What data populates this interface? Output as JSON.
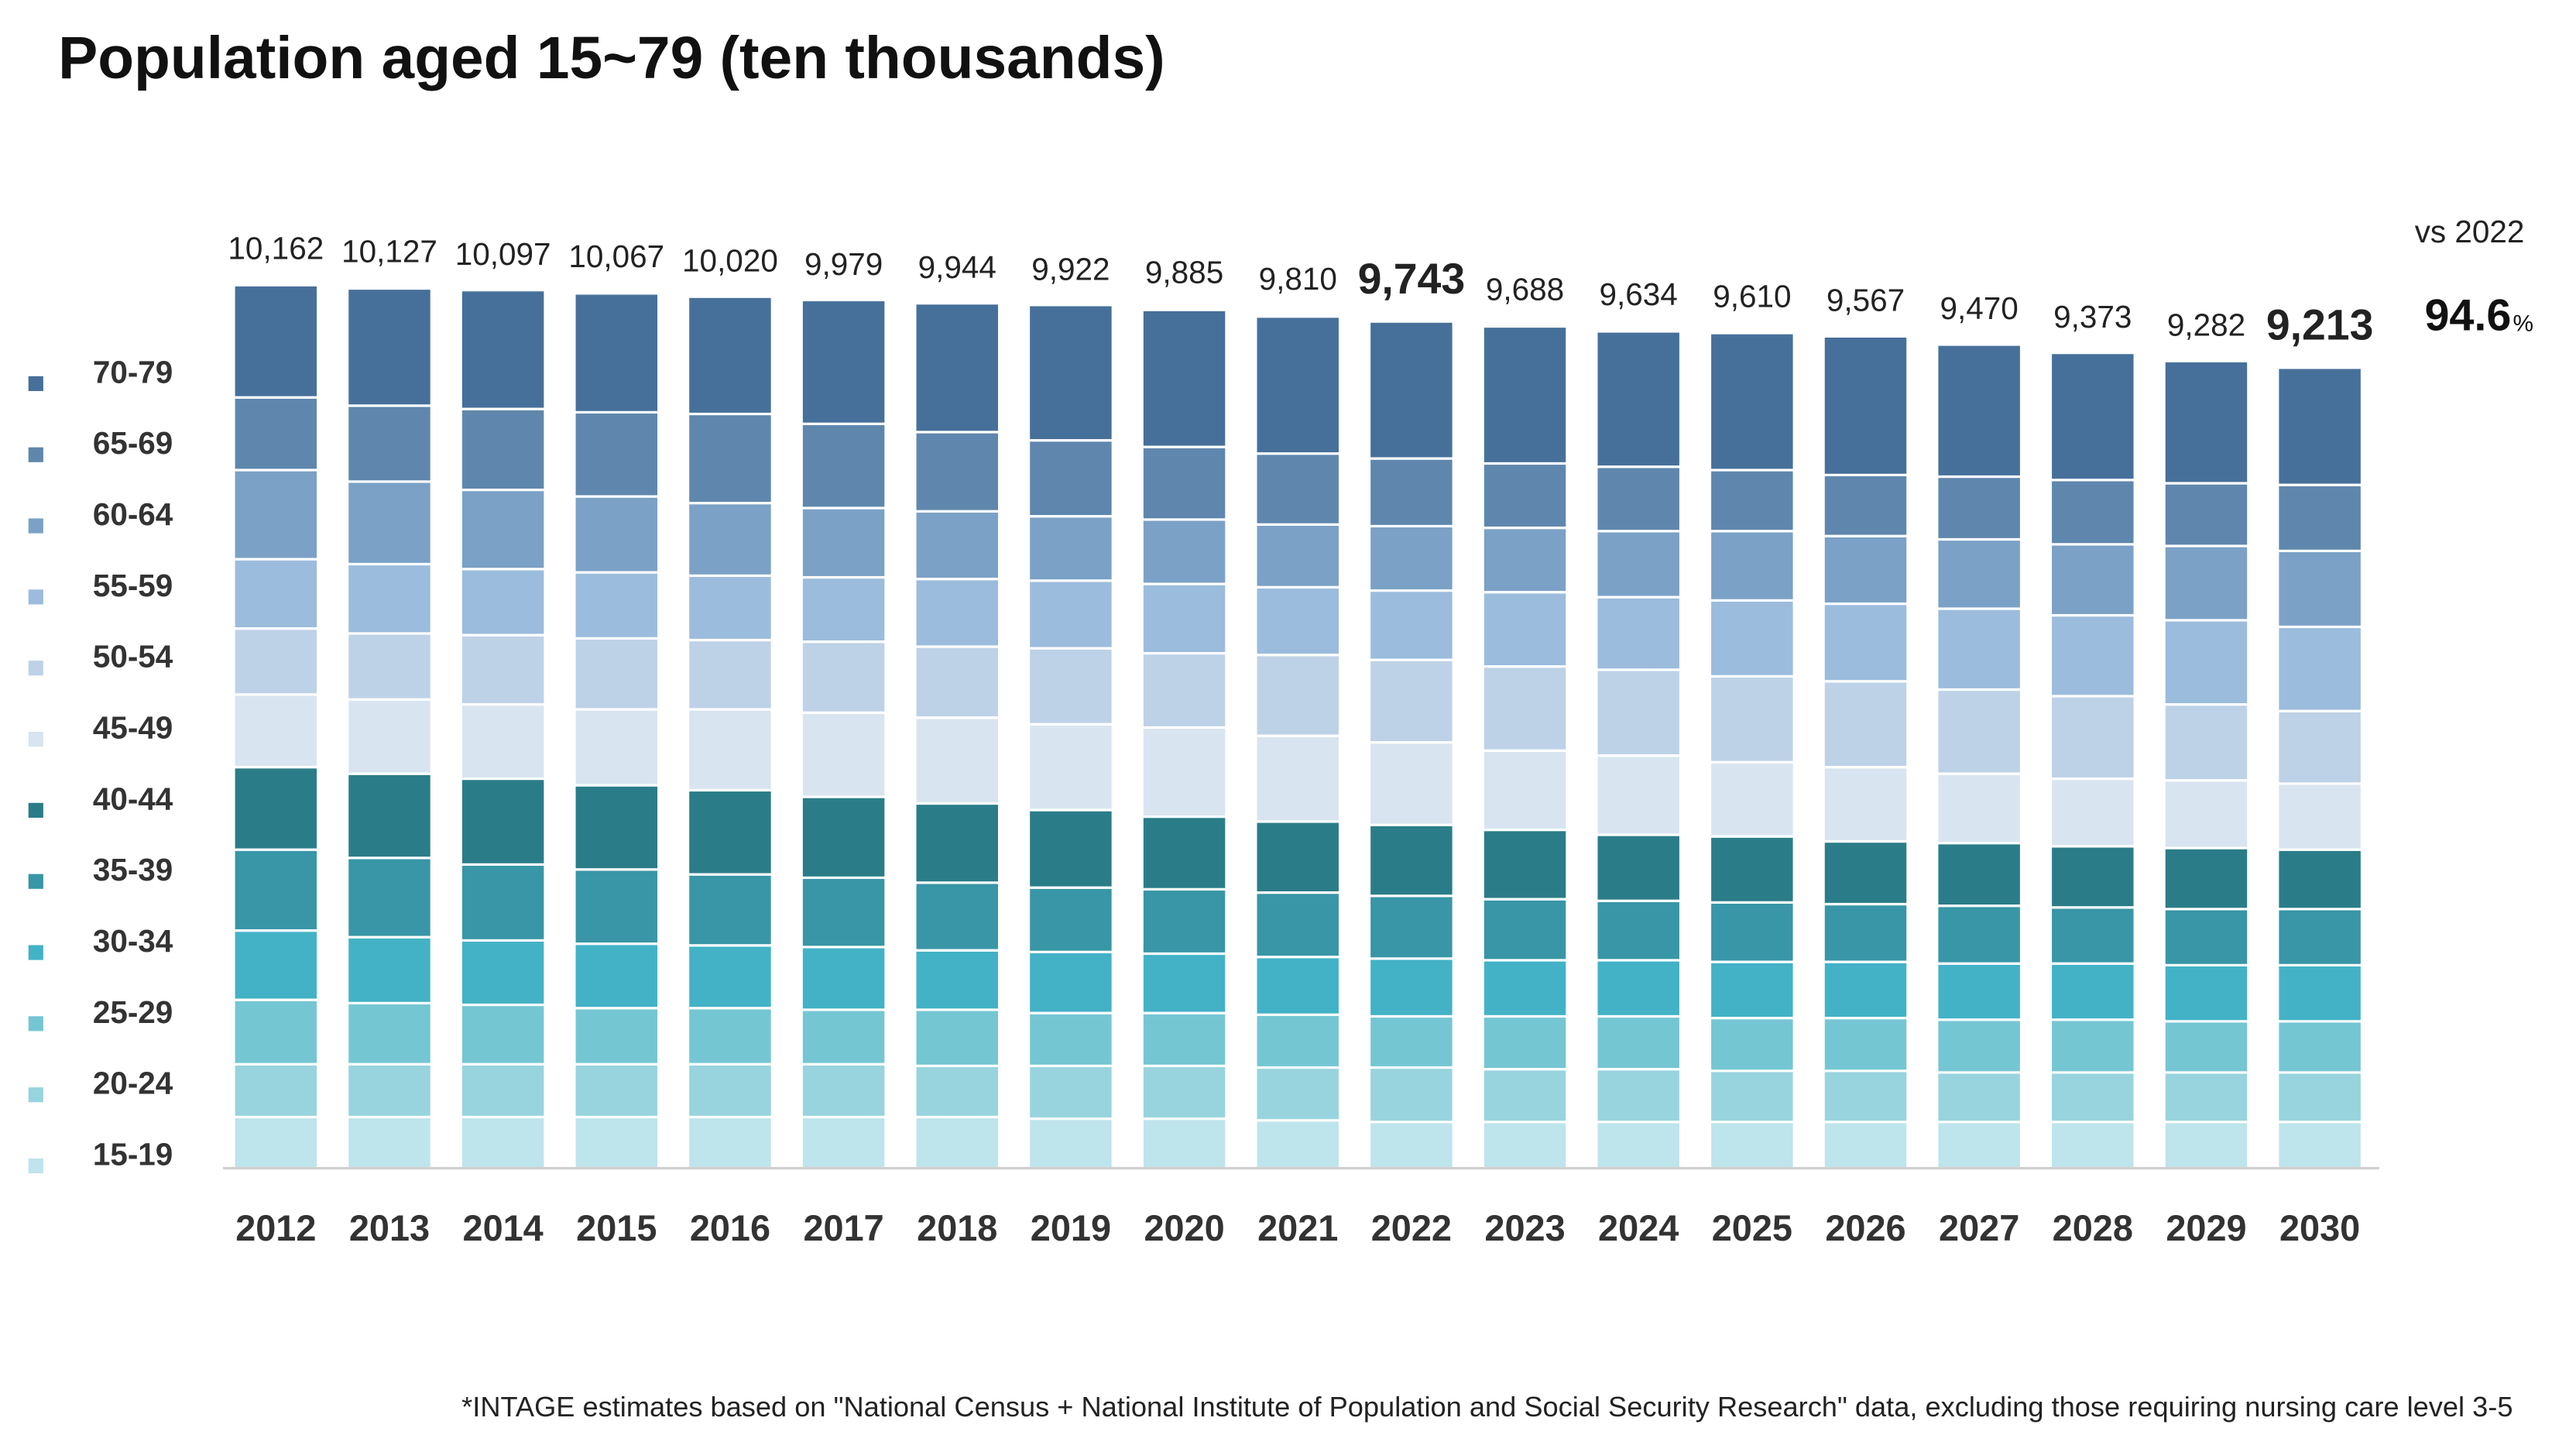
{
  "chart_data": {
    "type": "stacked_bar",
    "title": "Population aged 15~79 (ten thousands)",
    "footnote": "*INTAGE estimates based on \"National Census + National Institute of Population and Social Security Research\" data, excluding those requiring nursing care level 3-5",
    "categories": [
      "2012",
      "2013",
      "2014",
      "2015",
      "2016",
      "2017",
      "2018",
      "2019",
      "2020",
      "2021",
      "2022",
      "2023",
      "2024",
      "2025",
      "2026",
      "2027",
      "2028",
      "2029",
      "2030"
    ],
    "totals": [
      10162,
      10127,
      10097,
      10067,
      10020,
      9979,
      9944,
      9922,
      9885,
      9810,
      9743,
      9688,
      9634,
      9610,
      9567,
      9470,
      9373,
      9282,
      9213
    ],
    "total_labels": [
      "10,162",
      "10,127",
      "10,097",
      "10,067",
      "10,020",
      "9,979",
      "9,944",
      "9,922",
      "9,885",
      "9,810",
      "9,743",
      "9,688",
      "9,634",
      "9,610",
      "9,567",
      "9,470",
      "9,373",
      "9,282",
      "9,213"
    ],
    "bold_labels": [
      10,
      18
    ],
    "comparison": {
      "label": "vs 2022",
      "value": 94.6,
      "unit": "%"
    },
    "ylim": [
      0,
      10162
    ],
    "series": [
      {
        "name": "15-19",
        "color": "#bee4ec",
        "values": [
          589,
          589,
          589,
          589,
          589,
          589,
          589,
          570,
          570,
          551,
          532,
          532,
          532,
          532,
          532,
          532,
          532,
          532,
          532
        ]
      },
      {
        "name": "20-24",
        "color": "#98d4de",
        "values": [
          608,
          608,
          608,
          608,
          608,
          608,
          589,
          608,
          608,
          608,
          627,
          608,
          608,
          589,
          589,
          570,
          570,
          570,
          570
        ]
      },
      {
        "name": "25-29",
        "color": "#75c6d3",
        "values": [
          741,
          703,
          684,
          646,
          646,
          627,
          646,
          608,
          608,
          608,
          589,
          608,
          608,
          608,
          608,
          608,
          608,
          589,
          589
        ]
      },
      {
        "name": "30-34",
        "color": "#43b2c6",
        "values": [
          798,
          760,
          741,
          741,
          722,
          722,
          684,
          703,
          684,
          665,
          665,
          646,
          646,
          646,
          646,
          646,
          646,
          646,
          646
        ]
      },
      {
        "name": "35-39",
        "color": "#3896a6",
        "values": [
          931,
          912,
          874,
          855,
          817,
          798,
          779,
          741,
          741,
          741,
          722,
          703,
          684,
          684,
          665,
          665,
          646,
          646,
          646
        ]
      },
      {
        "name": "40-44",
        "color": "#2a7d88",
        "values": [
          950,
          969,
          988,
          969,
          969,
          931,
          912,
          893,
          836,
          817,
          817,
          798,
          760,
          760,
          722,
          722,
          703,
          703,
          684
        ]
      },
      {
        "name": "45-49",
        "color": "#d8e5f0",
        "values": [
          836,
          855,
          855,
          874,
          931,
          969,
          988,
          988,
          1026,
          988,
          950,
          912,
          912,
          855,
          855,
          798,
          779,
          779,
          760
        ]
      },
      {
        "name": "50-54",
        "color": "#bed2e7",
        "values": [
          760,
          760,
          798,
          817,
          798,
          817,
          817,
          874,
          855,
          931,
          950,
          969,
          988,
          988,
          988,
          969,
          950,
          874,
          836
        ]
      },
      {
        "name": "55-59",
        "color": "#9bbcdc",
        "values": [
          798,
          798,
          760,
          760,
          741,
          741,
          779,
          779,
          798,
          779,
          798,
          855,
          836,
          874,
          893,
          931,
          931,
          969,
          969
        ]
      },
      {
        "name": "60-64",
        "color": "#7ba1c6",
        "values": [
          1026,
          950,
          912,
          874,
          836,
          798,
          779,
          741,
          741,
          722,
          741,
          741,
          760,
          798,
          779,
          798,
          817,
          855,
          874
        ]
      },
      {
        "name": "65-69",
        "color": "#5f87ad",
        "values": [
          836,
          874,
          931,
          969,
          1026,
          969,
          912,
          874,
          836,
          817,
          779,
          741,
          741,
          703,
          703,
          722,
          741,
          722,
          760
        ]
      },
      {
        "name": "70-79",
        "color": "#46709a",
        "values": [
          1292,
          1349,
          1368,
          1368,
          1349,
          1425,
          1482,
          1558,
          1577,
          1577,
          1577,
          1577,
          1558,
          1577,
          1596,
          1520,
          1463,
          1406,
          1349
        ]
      }
    ]
  }
}
